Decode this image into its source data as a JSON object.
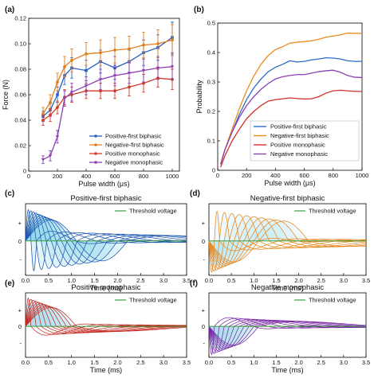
{
  "chart_data": [
    {
      "panel": "(a)",
      "type": "line",
      "xlabel": "Pulse width (μs)",
      "ylabel": "Force (N)",
      "xlim": [
        0,
        1050
      ],
      "ylim": [
        0,
        0.12
      ],
      "xticks": [
        "0",
        "200",
        "400",
        "600",
        "800",
        "1000"
      ],
      "yticks": [
        "0",
        "0.02",
        "0.04",
        "0.06",
        "0.08",
        "0.10",
        "0.12"
      ],
      "legend": "bottom-right",
      "x": [
        100,
        150,
        200,
        250,
        300,
        400,
        500,
        600,
        700,
        800,
        900,
        1000
      ],
      "series": [
        {
          "name": "Positive-first biphasic",
          "color": "#2b5fc2",
          "marker": "s",
          "values": [
            0.043,
            0.048,
            0.06,
            0.075,
            0.081,
            0.079,
            0.086,
            0.081,
            0.086,
            0.093,
            0.097,
            0.105
          ],
          "err": [
            0.004,
            0.005,
            0.006,
            0.007,
            0.008,
            0.008,
            0.009,
            0.009,
            0.009,
            0.01,
            0.01,
            0.012
          ]
        },
        {
          "name": "Negative-first biphasic",
          "color": "#e07f1f",
          "marker": "o",
          "values": [
            0.045,
            0.054,
            0.07,
            0.082,
            0.087,
            0.092,
            0.093,
            0.095,
            0.096,
            0.099,
            0.1,
            0.103
          ],
          "err": [
            0.005,
            0.006,
            0.007,
            0.008,
            0.009,
            0.009,
            0.01,
            0.01,
            0.01,
            0.01,
            0.011,
            0.012
          ]
        },
        {
          "name": "Positive monophasic",
          "color": "#d23b2a",
          "marker": "o",
          "values": [
            0.04,
            0.044,
            0.05,
            0.058,
            0.06,
            0.063,
            0.063,
            0.063,
            0.066,
            0.069,
            0.073,
            0.072
          ],
          "err": [
            0.004,
            0.005,
            0.005,
            0.006,
            0.006,
            0.006,
            0.006,
            0.006,
            0.007,
            0.007,
            0.007,
            0.008
          ]
        },
        {
          "name": "Negative monophasic",
          "color": "#8a3fb0",
          "marker": "v",
          "values": [
            0.009,
            0.012,
            0.027,
            0.057,
            0.062,
            0.067,
            0.072,
            0.075,
            0.077,
            0.079,
            0.081,
            0.082
          ],
          "err": [
            0.003,
            0.004,
            0.005,
            0.006,
            0.007,
            0.007,
            0.008,
            0.008,
            0.008,
            0.009,
            0.009,
            0.01
          ]
        }
      ]
    },
    {
      "panel": "(b)",
      "type": "line",
      "xlabel": "Pulse width (μs)",
      "ylabel": "Probability",
      "xlim": [
        0,
        1000
      ],
      "ylim": [
        0,
        0.5
      ],
      "xticks": [
        "0",
        "200",
        "400",
        "600",
        "800",
        "1000"
      ],
      "yticks": [
        "0",
        "0.1",
        "0.2",
        "0.3",
        "0.4",
        "0.5"
      ],
      "legend": "bottom-right",
      "x": [
        20,
        50,
        100,
        150,
        200,
        250,
        300,
        350,
        400,
        450,
        500,
        550,
        600,
        650,
        700,
        750,
        800,
        850,
        900,
        950,
        1000
      ],
      "series": [
        {
          "name": "Positive-first biphasic",
          "color": "#2b6cc4",
          "values": [
            0.02,
            0.07,
            0.13,
            0.19,
            0.24,
            0.28,
            0.31,
            0.335,
            0.35,
            0.36,
            0.372,
            0.368,
            0.37,
            0.375,
            0.378,
            0.382,
            0.381,
            0.378,
            0.372,
            0.37,
            0.37
          ]
        },
        {
          "name": "Negative-first biphasic",
          "color": "#ef8a1d",
          "values": [
            0.02,
            0.07,
            0.14,
            0.21,
            0.27,
            0.32,
            0.36,
            0.39,
            0.41,
            0.42,
            0.432,
            0.435,
            0.437,
            0.44,
            0.445,
            0.452,
            0.456,
            0.46,
            0.466,
            0.465,
            0.465
          ]
        },
        {
          "name": "Positive monophasic",
          "color": "#d2302a",
          "values": [
            0.01,
            0.05,
            0.1,
            0.14,
            0.175,
            0.2,
            0.22,
            0.235,
            0.24,
            0.243,
            0.246,
            0.244,
            0.242,
            0.243,
            0.25,
            0.262,
            0.27,
            0.272,
            0.27,
            0.268,
            0.268
          ]
        },
        {
          "name": "Negative monophasic",
          "color": "#8a40b5",
          "values": [
            0.02,
            0.07,
            0.13,
            0.18,
            0.22,
            0.25,
            0.275,
            0.295,
            0.31,
            0.318,
            0.322,
            0.325,
            0.325,
            0.33,
            0.335,
            0.338,
            0.34,
            0.333,
            0.322,
            0.316,
            0.315
          ]
        }
      ]
    },
    {
      "panel": "(c)",
      "type": "line",
      "title": "Positive-first biphasic",
      "xlabel": "Time (ms)",
      "xlim": [
        0,
        3.5
      ],
      "xticks": [
        "0.0",
        "0.5",
        "1.0",
        "1.5",
        "2.0",
        "2.5",
        "3.0",
        "3.5"
      ],
      "yticks": [
        "+",
        "0",
        "-"
      ],
      "legend": [
        "Threshold voltage"
      ],
      "curves": 10,
      "first_phase": "positive",
      "biphasic": true,
      "stroke": "#1f57b3",
      "fill": "#8fd6ea",
      "threshold_color": "#3a9e3a"
    },
    {
      "panel": "(d)",
      "type": "line",
      "title": "Negative-first biphasic",
      "xlabel": "Time (ms)",
      "xlim": [
        0,
        3.5
      ],
      "xticks": [
        "0.0",
        "0.5",
        "1.0",
        "1.5",
        "2.0",
        "2.5",
        "3.0",
        "3.5"
      ],
      "yticks": [
        "+",
        "0",
        "-"
      ],
      "legend": [
        "Threshold voltage"
      ],
      "curves": 10,
      "first_phase": "negative",
      "biphasic": true,
      "stroke": "#e8861e",
      "fill": "#bfe9f5",
      "threshold_color": "#3a9e3a"
    },
    {
      "panel": "(e)",
      "type": "line",
      "title": "Positive monophasic",
      "xlabel": "Time (ms)",
      "xlim": [
        0,
        3.5
      ],
      "xticks": [
        "0.0",
        "0.5",
        "1.0",
        "1.5",
        "2.0",
        "2.5",
        "3.0",
        "3.5"
      ],
      "yticks": [
        "+",
        "0",
        "-"
      ],
      "legend": [
        "Threshold voltage"
      ],
      "curves": 10,
      "first_phase": "positive",
      "biphasic": false,
      "stroke": "#c62b25",
      "fill": "#a9e0ee",
      "threshold_color": "#3a9e3a"
    },
    {
      "panel": "(f)",
      "type": "line",
      "title": "Negative monophasic",
      "xlabel": "Time (ms)",
      "xlim": [
        0,
        3.5
      ],
      "xticks": [
        "0.0",
        "0.5",
        "1.0",
        "1.5",
        "2.0",
        "2.5",
        "3.0",
        "3.5"
      ],
      "yticks": [
        "+",
        "0",
        "-"
      ],
      "legend": [
        "Threshold voltage"
      ],
      "curves": 10,
      "first_phase": "negative",
      "biphasic": false,
      "stroke": "#7a2aa6",
      "fill": "#a9e0ee",
      "threshold_color": "#3a9e3a"
    }
  ]
}
